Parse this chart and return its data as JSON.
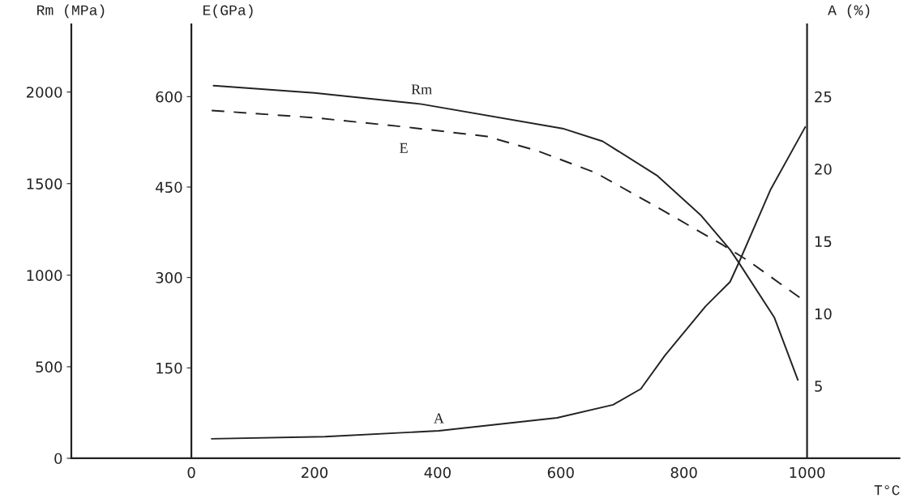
{
  "chart_data": {
    "type": "line",
    "xlabel": "T°C",
    "ylabel": "Rm (MPa)",
    "y2label": "E(GPa)",
    "y3label": "A (%)",
    "xlim": [
      -195,
      1150
    ],
    "xticks": [
      0,
      200,
      400,
      600,
      800,
      1000
    ],
    "ylim": [
      0,
      2370
    ],
    "yticks": [
      0,
      500,
      1000,
      1500,
      2000
    ],
    "y2lim": [
      0,
      720
    ],
    "y2ticks": [
      150,
      300,
      450,
      600
    ],
    "y3lim": [
      0,
      30
    ],
    "y3ticks": [
      5,
      10,
      15,
      20,
      25
    ],
    "series": [
      {
        "name": "Rm",
        "color": "#222222",
        "axis": "y",
        "line_style": "solid",
        "x": [
          36,
          200,
          374,
          603,
          668,
          756,
          827,
          875,
          890,
          947,
          985
        ],
        "values": [
          2035,
          1995,
          1934,
          1801,
          1731,
          1545,
          1329,
          1139,
          1064,
          768,
          428
        ]
      },
      {
        "name": "E",
        "color": "#222222",
        "axis": "y2",
        "line_style": "dashed",
        "x": [
          33,
          200,
          345,
          480,
          562,
          656,
          756,
          863,
          904,
          996
        ],
        "values": [
          577,
          565,
          550,
          534,
          510,
          474,
          417,
          354,
          328,
          261
        ]
      },
      {
        "name": "A",
        "color": "#222222",
        "axis": "y3",
        "line_style": "solid",
        "x": [
          33,
          217,
          402,
          594,
          685,
          730,
          769,
          835,
          875,
          890,
          941,
          997
        ],
        "values": [
          1.35,
          1.5,
          1.9,
          2.8,
          3.7,
          4.8,
          7.1,
          10.5,
          12.2,
          13.6,
          18.6,
          22.9
        ]
      }
    ]
  }
}
